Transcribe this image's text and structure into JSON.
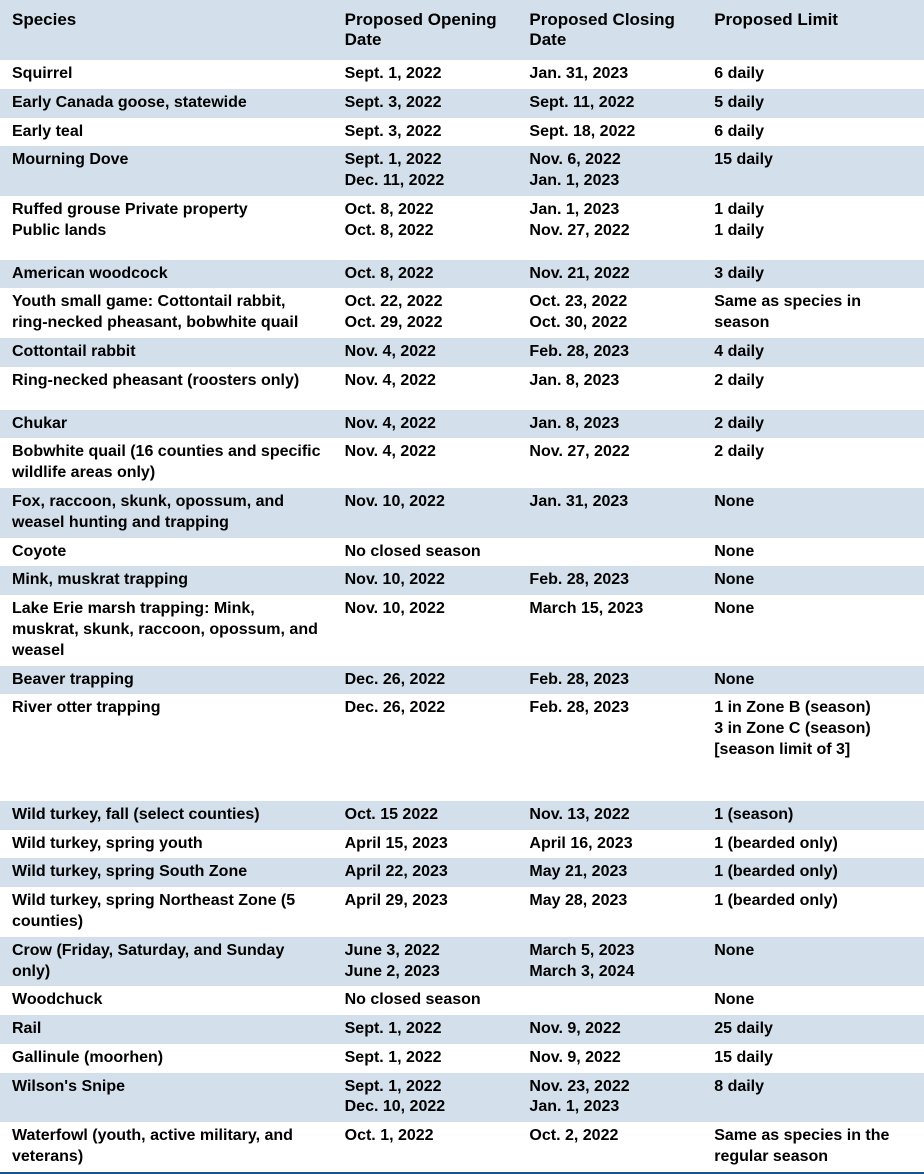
{
  "table": {
    "columns": {
      "species": "Species",
      "opening": "Proposed Opening Date",
      "closing": "Proposed Closing Date",
      "limit": "Proposed Limit"
    },
    "column_widths": {
      "species": "36%",
      "opening": "20%",
      "closing": "20%",
      "limit": "24%"
    },
    "header_bg": "#d3e0eb",
    "row_shaded_bg": "#d3e0eb",
    "row_unshaded_bg": "#ffffff",
    "text_color": "#000000",
    "font_family": "Arial, Helvetica, sans-serif",
    "header_fontsize": 17,
    "body_fontsize": 16,
    "footer_border_color": "#1a5490",
    "rows": [
      {
        "shaded": false,
        "species": "Squirrel",
        "opening": "Sept. 1, 2022",
        "closing": "Jan. 31, 2023",
        "limit": "6 daily"
      },
      {
        "shaded": true,
        "species": "Early Canada goose, statewide",
        "opening": "Sept. 3, 2022",
        "closing": "Sept. 11, 2022",
        "limit": "5 daily"
      },
      {
        "shaded": false,
        "species": "Early teal",
        "opening": "Sept. 3, 2022",
        "closing": "Sept. 18, 2022",
        "limit": "6 daily"
      },
      {
        "shaded": true,
        "species": "Mourning Dove",
        "opening": "Sept. 1, 2022\nDec. 11, 2022",
        "closing": "Nov. 6, 2022\nJan. 1, 2023",
        "limit": "15 daily"
      },
      {
        "shaded": false,
        "species": "Ruffed grouse Private property\nPublic lands",
        "opening": "Oct. 8, 2022\nOct. 8, 2022",
        "closing": "Jan. 1, 2023\nNov. 27, 2022",
        "limit": "1 daily\n1 daily",
        "extrapad": true
      },
      {
        "shaded": true,
        "species": "American woodcock",
        "opening": "Oct. 8, 2022",
        "closing": "Nov. 21, 2022",
        "limit": "3 daily"
      },
      {
        "shaded": false,
        "species": "Youth small game: Cottontail rabbit, ring-necked pheasant, bobwhite quail",
        "opening": "Oct. 22, 2022\nOct. 29, 2022",
        "closing": "Oct. 23, 2022\nOct. 30, 2022",
        "limit": "Same as species in season"
      },
      {
        "shaded": true,
        "species": "Cottontail rabbit",
        "opening": "Nov. 4, 2022",
        "closing": "Feb. 28, 2023",
        "limit": "4 daily"
      },
      {
        "shaded": false,
        "species": "Ring-necked pheasant (roosters only)",
        "opening": "Nov. 4, 2022",
        "closing": "Jan. 8, 2023",
        "limit": "2 daily",
        "extrapad": true
      },
      {
        "shaded": true,
        "species": "Chukar",
        "opening": "Nov. 4, 2022",
        "closing": "Jan. 8, 2023",
        "limit": "2 daily"
      },
      {
        "shaded": false,
        "species": "Bobwhite quail (16 counties and specific wildlife areas only)",
        "opening": "Nov. 4, 2022",
        "closing": "Nov. 27, 2022",
        "limit": "2 daily"
      },
      {
        "shaded": true,
        "species": "Fox, raccoon, skunk, opossum, and weasel hunting and trapping",
        "opening": "Nov. 10, 2022",
        "closing": "Jan. 31, 2023",
        "limit": "None"
      },
      {
        "shaded": false,
        "species": "Coyote",
        "opening": "No closed season",
        "closing": "",
        "limit": "None"
      },
      {
        "shaded": true,
        "species": "Mink, muskrat trapping",
        "opening": "Nov. 10, 2022",
        "closing": "Feb. 28, 2023",
        "limit": "None"
      },
      {
        "shaded": false,
        "species": "Lake Erie marsh trapping: Mink, muskrat, skunk, raccoon, opossum, and weasel",
        "opening": "Nov. 10, 2022",
        "closing": "March 15, 2023",
        "limit": "None"
      },
      {
        "shaded": true,
        "species": "Beaver trapping",
        "opening": "Dec. 26, 2022",
        "closing": "Feb. 28, 2023",
        "limit": "None"
      },
      {
        "shaded": false,
        "species": "River otter trapping",
        "opening": "Dec. 26, 2022",
        "closing": "Feb. 28, 2023",
        "limit": "1 in Zone B (season)\n3 in Zone C (season)\n[season limit of 3]",
        "extrapad2": true
      },
      {
        "shaded": true,
        "species": "Wild turkey, fall (select counties)",
        "opening": "Oct. 15 2022",
        "closing": "Nov. 13, 2022",
        "limit": "1 (season)"
      },
      {
        "shaded": false,
        "species": "Wild turkey, spring youth",
        "opening": "April 15, 2023",
        "closing": "April 16, 2023",
        "limit": "1 (bearded only)"
      },
      {
        "shaded": true,
        "species": "Wild turkey, spring South Zone",
        "opening": "April 22, 2023",
        "closing": "May 21, 2023",
        "limit": "1 (bearded only)"
      },
      {
        "shaded": false,
        "species": "Wild turkey, spring Northeast Zone (5 counties)",
        "opening": "April 29, 2023",
        "closing": "May 28, 2023",
        "limit": "1 (bearded only)"
      },
      {
        "shaded": true,
        "species": "Crow (Friday, Saturday, and Sunday only)",
        "opening": "June 3, 2022\nJune 2, 2023",
        "closing": "March 5, 2023\nMarch 3, 2024",
        "limit": "None"
      },
      {
        "shaded": false,
        "species": "Woodchuck",
        "opening": "No closed season",
        "closing": "",
        "limit": "None"
      },
      {
        "shaded": true,
        "species": "Rail",
        "opening": "Sept. 1, 2022",
        "closing": "Nov. 9, 2022",
        "limit": "25 daily"
      },
      {
        "shaded": false,
        "species": "Gallinule (moorhen)",
        "opening": "Sept. 1, 2022",
        "closing": "Nov. 9, 2022",
        "limit": "15 daily"
      },
      {
        "shaded": true,
        "species": "Wilson's Snipe",
        "opening": "Sept. 1, 2022\nDec. 10, 2022",
        "closing": "Nov. 23, 2022\nJan. 1, 2023",
        "limit": "8 daily"
      },
      {
        "shaded": false,
        "species": "Waterfowl (youth, active military, and veterans)",
        "opening": "Oct. 1, 2022",
        "closing": "Oct. 2, 2022",
        "limit": "Same as species in the regular season"
      }
    ]
  }
}
